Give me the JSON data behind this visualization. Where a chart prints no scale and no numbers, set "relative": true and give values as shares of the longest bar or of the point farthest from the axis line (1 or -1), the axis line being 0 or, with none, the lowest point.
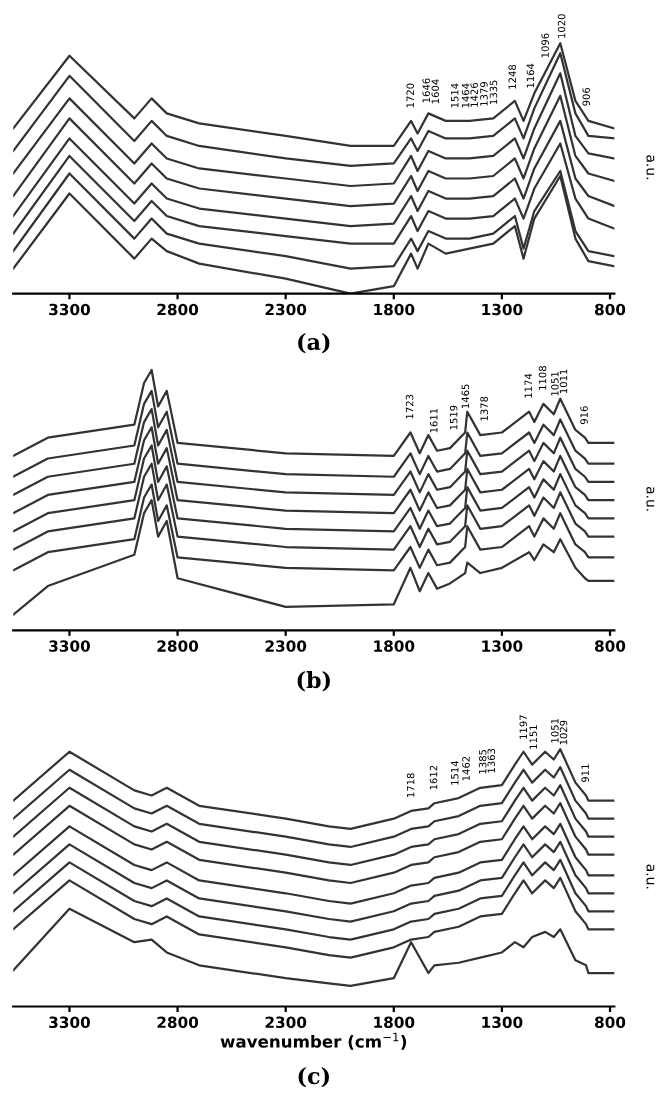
{
  "chart_data": [
    {
      "type": "line",
      "title": "(a)",
      "ylabel": "a.u.",
      "relative": true,
      "xlim": [
        3560,
        780
      ],
      "xticks": [
        3300,
        2800,
        2300,
        1800,
        1300,
        800
      ],
      "line_style": "solid",
      "marker": "none",
      "x": [
        3560,
        3300,
        3000,
        2920,
        2850,
        2700,
        2300,
        2000,
        1800,
        1720,
        1690,
        1640,
        1560,
        1450,
        1340,
        1240,
        1200,
        1150,
        1030,
        960,
        900,
        780
      ],
      "series": [
        {
          "color": "#333333",
          "values": [
            0.66,
            0.95,
            0.7,
            0.78,
            0.72,
            0.68,
            0.63,
            0.59,
            0.59,
            0.69,
            0.64,
            0.72,
            0.69,
            0.69,
            0.7,
            0.77,
            0.69,
            0.8,
            1.0,
            0.77,
            0.69,
            0.66
          ]
        },
        {
          "color": "#333333",
          "values": [
            0.57,
            0.87,
            0.61,
            0.69,
            0.63,
            0.59,
            0.54,
            0.51,
            0.52,
            0.62,
            0.57,
            0.65,
            0.62,
            0.62,
            0.63,
            0.7,
            0.62,
            0.74,
            0.96,
            0.72,
            0.63,
            0.62
          ]
        },
        {
          "color": "#333333",
          "values": [
            0.48,
            0.78,
            0.52,
            0.6,
            0.54,
            0.5,
            0.46,
            0.43,
            0.44,
            0.55,
            0.49,
            0.57,
            0.54,
            0.54,
            0.55,
            0.62,
            0.54,
            0.66,
            0.88,
            0.63,
            0.56,
            0.54
          ]
        },
        {
          "color": "#333333",
          "values": [
            0.39,
            0.7,
            0.44,
            0.52,
            0.46,
            0.42,
            0.38,
            0.35,
            0.36,
            0.47,
            0.41,
            0.49,
            0.46,
            0.46,
            0.47,
            0.54,
            0.46,
            0.58,
            0.79,
            0.55,
            0.48,
            0.45
          ]
        },
        {
          "color": "#333333",
          "values": [
            0.31,
            0.62,
            0.36,
            0.44,
            0.38,
            0.34,
            0.3,
            0.27,
            0.28,
            0.39,
            0.33,
            0.41,
            0.38,
            0.38,
            0.39,
            0.46,
            0.38,
            0.5,
            0.69,
            0.46,
            0.39,
            0.35
          ]
        },
        {
          "color": "#333333",
          "values": [
            0.24,
            0.55,
            0.29,
            0.37,
            0.31,
            0.27,
            0.23,
            0.2,
            0.2,
            0.31,
            0.25,
            0.33,
            0.3,
            0.3,
            0.31,
            0.38,
            0.3,
            0.42,
            0.6,
            0.38,
            0.3,
            0.26
          ]
        },
        {
          "color": "#333333",
          "values": [
            0.17,
            0.48,
            0.22,
            0.3,
            0.24,
            0.2,
            0.15,
            0.1,
            0.11,
            0.22,
            0.17,
            0.25,
            0.22,
            0.22,
            0.24,
            0.31,
            0.18,
            0.33,
            0.49,
            0.25,
            0.17,
            0.15
          ]
        },
        {
          "color": "#333333",
          "values": [
            0.1,
            0.4,
            0.14,
            0.22,
            0.17,
            0.12,
            0.06,
            0.0,
            0.03,
            0.16,
            0.1,
            0.2,
            0.16,
            0.18,
            0.2,
            0.27,
            0.14,
            0.3,
            0.47,
            0.22,
            0.13,
            0.11
          ]
        }
      ],
      "annotations": [
        "1720",
        "1646",
        "1604",
        "1514",
        "1464",
        "1426",
        "1379",
        "1335",
        "1248",
        "1164",
        "1096",
        "1020",
        "906"
      ]
    },
    {
      "type": "line",
      "title": "(b)",
      "ylabel": "a.u.",
      "relative": true,
      "xlim": [
        3560,
        780
      ],
      "xticks": [
        3300,
        2800,
        2300,
        1800,
        1300,
        800
      ],
      "line_style": "solid",
      "marker": "none",
      "x": [
        3560,
        3400,
        3000,
        2955,
        2920,
        2890,
        2850,
        2800,
        2300,
        1800,
        1723,
        1680,
        1640,
        1600,
        1540,
        1470,
        1460,
        1400,
        1300,
        1174,
        1150,
        1108,
        1060,
        1030,
        960,
        916,
        900,
        780
      ],
      "series": [
        {
          "color": "#333333",
          "values": [
            0.67,
            0.74,
            0.79,
            0.95,
            1.0,
            0.86,
            0.92,
            0.72,
            0.68,
            0.67,
            0.76,
            0.68,
            0.75,
            0.69,
            0.7,
            0.76,
            0.84,
            0.75,
            0.76,
            0.84,
            0.8,
            0.87,
            0.83,
            0.89,
            0.77,
            0.74,
            0.72,
            0.72
          ]
        },
        {
          "color": "#333333",
          "values": [
            0.59,
            0.66,
            0.71,
            0.87,
            0.92,
            0.78,
            0.84,
            0.64,
            0.6,
            0.59,
            0.68,
            0.6,
            0.67,
            0.61,
            0.62,
            0.68,
            0.76,
            0.67,
            0.68,
            0.76,
            0.72,
            0.79,
            0.75,
            0.81,
            0.69,
            0.66,
            0.64,
            0.64
          ]
        },
        {
          "color": "#333333",
          "values": [
            0.52,
            0.59,
            0.64,
            0.8,
            0.85,
            0.71,
            0.77,
            0.57,
            0.53,
            0.52,
            0.61,
            0.53,
            0.6,
            0.54,
            0.55,
            0.61,
            0.69,
            0.6,
            0.61,
            0.69,
            0.65,
            0.72,
            0.68,
            0.74,
            0.62,
            0.59,
            0.57,
            0.57
          ]
        },
        {
          "color": "#333333",
          "values": [
            0.45,
            0.52,
            0.57,
            0.73,
            0.78,
            0.64,
            0.7,
            0.5,
            0.46,
            0.45,
            0.54,
            0.46,
            0.53,
            0.47,
            0.48,
            0.54,
            0.62,
            0.53,
            0.54,
            0.62,
            0.58,
            0.65,
            0.61,
            0.67,
            0.55,
            0.52,
            0.5,
            0.5
          ]
        },
        {
          "color": "#333333",
          "values": [
            0.38,
            0.45,
            0.5,
            0.66,
            0.71,
            0.57,
            0.63,
            0.43,
            0.39,
            0.38,
            0.47,
            0.39,
            0.46,
            0.4,
            0.41,
            0.47,
            0.55,
            0.46,
            0.47,
            0.55,
            0.51,
            0.58,
            0.54,
            0.6,
            0.48,
            0.45,
            0.43,
            0.43
          ]
        },
        {
          "color": "#333333",
          "values": [
            0.31,
            0.38,
            0.43,
            0.59,
            0.64,
            0.5,
            0.56,
            0.36,
            0.32,
            0.31,
            0.4,
            0.32,
            0.39,
            0.33,
            0.34,
            0.4,
            0.48,
            0.39,
            0.4,
            0.48,
            0.44,
            0.51,
            0.47,
            0.53,
            0.41,
            0.38,
            0.36,
            0.36
          ]
        },
        {
          "color": "#333333",
          "values": [
            0.23,
            0.3,
            0.35,
            0.51,
            0.56,
            0.42,
            0.48,
            0.28,
            0.24,
            0.23,
            0.32,
            0.24,
            0.31,
            0.25,
            0.26,
            0.32,
            0.4,
            0.31,
            0.32,
            0.4,
            0.36,
            0.43,
            0.39,
            0.45,
            0.33,
            0.3,
            0.28,
            0.28
          ]
        },
        {
          "color": "#333333",
          "values": [
            0.06,
            0.17,
            0.29,
            0.45,
            0.5,
            0.36,
            0.42,
            0.2,
            0.09,
            0.1,
            0.24,
            0.15,
            0.22,
            0.16,
            0.18,
            0.22,
            0.26,
            0.22,
            0.24,
            0.3,
            0.27,
            0.33,
            0.3,
            0.35,
            0.24,
            0.2,
            0.19,
            0.19
          ]
        }
      ],
      "annotations": [
        "1723",
        "1611",
        "1519",
        "1465",
        "1378",
        "1174",
        "1108",
        "1051",
        "1011",
        "916"
      ]
    },
    {
      "type": "line",
      "title": "(c)",
      "ylabel": "a.u.",
      "xlabel": "wavenumber (cm$^{−1}$)",
      "relative": true,
      "xlim": [
        3560,
        780
      ],
      "xticks": [
        3300,
        2800,
        2300,
        1800,
        1300,
        800
      ],
      "line_style": "solid",
      "marker": "none",
      "x": [
        3560,
        3300,
        3000,
        2920,
        2850,
        2700,
        2300,
        2100,
        2000,
        1800,
        1720,
        1640,
        1612,
        1500,
        1400,
        1300,
        1240,
        1200,
        1160,
        1100,
        1060,
        1030,
        960,
        911,
        900,
        780
      ],
      "series": [
        {
          "color": "#333333",
          "values": [
            0.8,
            0.99,
            0.84,
            0.82,
            0.85,
            0.78,
            0.73,
            0.7,
            0.69,
            0.73,
            0.76,
            0.77,
            0.79,
            0.81,
            0.85,
            0.86,
            0.94,
            0.99,
            0.94,
            0.99,
            0.96,
            1.0,
            0.87,
            0.82,
            0.8,
            0.8
          ]
        },
        {
          "color": "#333333",
          "values": [
            0.73,
            0.92,
            0.77,
            0.75,
            0.78,
            0.71,
            0.66,
            0.63,
            0.62,
            0.66,
            0.69,
            0.7,
            0.72,
            0.74,
            0.78,
            0.79,
            0.87,
            0.92,
            0.87,
            0.92,
            0.89,
            0.93,
            0.8,
            0.75,
            0.73,
            0.73
          ]
        },
        {
          "color": "#333333",
          "values": [
            0.66,
            0.85,
            0.7,
            0.68,
            0.71,
            0.64,
            0.59,
            0.56,
            0.55,
            0.59,
            0.62,
            0.63,
            0.65,
            0.67,
            0.71,
            0.72,
            0.8,
            0.85,
            0.8,
            0.85,
            0.82,
            0.86,
            0.73,
            0.68,
            0.66,
            0.66
          ]
        },
        {
          "color": "#333333",
          "values": [
            0.59,
            0.78,
            0.63,
            0.61,
            0.64,
            0.57,
            0.52,
            0.49,
            0.48,
            0.52,
            0.55,
            0.56,
            0.58,
            0.6,
            0.64,
            0.65,
            0.73,
            0.78,
            0.73,
            0.78,
            0.75,
            0.79,
            0.66,
            0.61,
            0.59,
            0.59
          ]
        },
        {
          "color": "#333333",
          "values": [
            0.51,
            0.7,
            0.55,
            0.53,
            0.56,
            0.49,
            0.44,
            0.41,
            0.4,
            0.44,
            0.47,
            0.48,
            0.5,
            0.52,
            0.56,
            0.57,
            0.65,
            0.7,
            0.65,
            0.7,
            0.67,
            0.71,
            0.58,
            0.53,
            0.51,
            0.51
          ]
        },
        {
          "color": "#333333",
          "values": [
            0.44,
            0.63,
            0.48,
            0.46,
            0.49,
            0.42,
            0.37,
            0.34,
            0.33,
            0.37,
            0.4,
            0.41,
            0.43,
            0.45,
            0.49,
            0.5,
            0.58,
            0.63,
            0.58,
            0.63,
            0.6,
            0.64,
            0.51,
            0.46,
            0.44,
            0.44
          ]
        },
        {
          "color": "#333333",
          "values": [
            0.37,
            0.56,
            0.41,
            0.39,
            0.42,
            0.35,
            0.3,
            0.27,
            0.26,
            0.3,
            0.33,
            0.34,
            0.36,
            0.38,
            0.42,
            0.43,
            0.51,
            0.56,
            0.51,
            0.56,
            0.53,
            0.57,
            0.44,
            0.39,
            0.37,
            0.37
          ]
        },
        {
          "color": "#333333",
          "values": [
            0.3,
            0.49,
            0.34,
            0.32,
            0.35,
            0.28,
            0.23,
            0.2,
            0.19,
            0.23,
            0.26,
            0.27,
            0.29,
            0.31,
            0.35,
            0.36,
            0.44,
            0.49,
            0.44,
            0.49,
            0.46,
            0.5,
            0.37,
            0.32,
            0.3,
            0.3
          ]
        },
        {
          "color": "#333333",
          "values": [
            0.14,
            0.38,
            0.25,
            0.26,
            0.21,
            0.16,
            0.11,
            0.09,
            0.08,
            0.11,
            0.25,
            0.13,
            0.16,
            0.17,
            0.19,
            0.21,
            0.25,
            0.23,
            0.27,
            0.29,
            0.27,
            0.3,
            0.18,
            0.16,
            0.13,
            0.13
          ]
        }
      ],
      "annotations": [
        "1718",
        "1612",
        "1514",
        "1462",
        "1385",
        "1363",
        "1197",
        "1151",
        "1051",
        "1029",
        "911"
      ]
    }
  ]
}
